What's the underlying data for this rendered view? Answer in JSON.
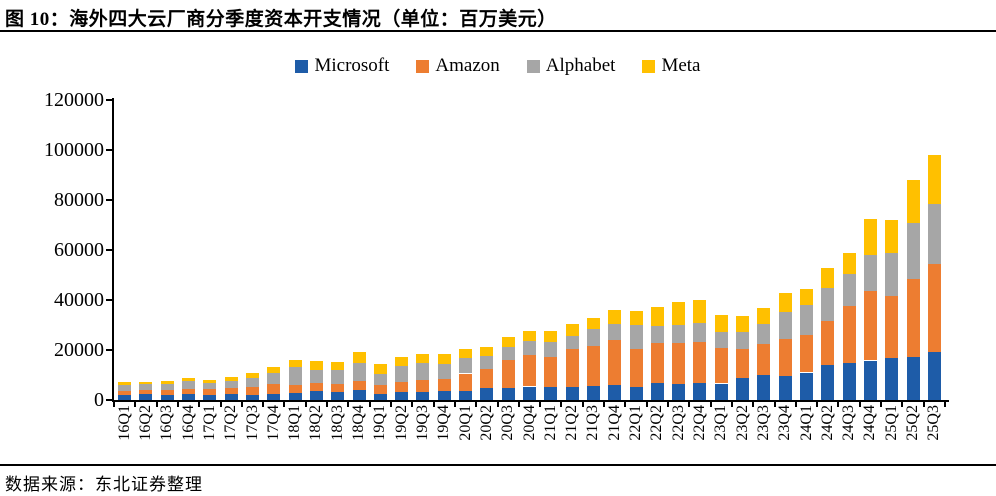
{
  "figure": {
    "title": "图 10：海外四大云厂商分季度资本开支情况（单位：百万美元）",
    "source": "数据来源：东北证券整理"
  },
  "chart_data": {
    "type": "bar",
    "stacked": true,
    "title": "海外四大云厂商分季度资本开支情况",
    "unit_label": "百万美元",
    "grid": false,
    "legend_position": "top",
    "xlabel": "",
    "ylabel": "",
    "ylim": [
      0,
      120000
    ],
    "yticks": [
      0,
      20000,
      40000,
      60000,
      80000,
      100000,
      120000
    ],
    "categories": [
      "16Q1",
      "16Q2",
      "16Q3",
      "16Q4",
      "17Q1",
      "17Q2",
      "17Q3",
      "17Q4",
      "18Q1",
      "18Q2",
      "18Q3",
      "18Q4",
      "19Q1",
      "19Q2",
      "19Q3",
      "19Q4",
      "20Q1",
      "20Q2",
      "20Q3",
      "20Q4",
      "21Q1",
      "21Q2",
      "21Q3",
      "21Q4",
      "22Q1",
      "22Q2",
      "22Q3",
      "22Q4",
      "23Q1",
      "23Q2",
      "23Q3",
      "23Q4",
      "24Q1",
      "24Q2",
      "24Q3",
      "24Q4",
      "25Q1",
      "25Q2",
      "25Q3"
    ],
    "series": [
      {
        "name": "Microsoft",
        "color": "#1E5CA8",
        "values": [
          2100,
          2400,
          2200,
          2500,
          1900,
          2300,
          2200,
          2600,
          2900,
          3500,
          3200,
          3900,
          2600,
          3400,
          3400,
          3500,
          3800,
          4700,
          4900,
          5400,
          5100,
          5300,
          5800,
          5900,
          5300,
          6900,
          6300,
          6800,
          6600,
          8900,
          9900,
          9700,
          11000,
          13900,
          14900,
          15800,
          16700,
          17100,
          19400
        ]
      },
      {
        "name": "Amazon",
        "color": "#ED7D31",
        "values": [
          1500,
          1700,
          1700,
          1800,
          2400,
          2500,
          3100,
          3900,
          3100,
          3200,
          3350,
          3800,
          3300,
          3900,
          4700,
          4960,
          6800,
          7600,
          11060,
          12640,
          12080,
          14950,
          15750,
          18280,
          14950,
          15720,
          16380,
          16590,
          14210,
          11460,
          12480,
          14590,
          14930,
          17620,
          22620,
          27830,
          25020,
          31440,
          35100
        ]
      },
      {
        "name": "Alphabet",
        "color": "#A6A6A6",
        "values": [
          2360,
          2120,
          2550,
          3170,
          2510,
          2790,
          3570,
          4320,
          7280,
          5480,
          5280,
          7100,
          4640,
          6130,
          6730,
          6060,
          6010,
          5390,
          5410,
          5480,
          5940,
          5500,
          6820,
          6380,
          9790,
          6830,
          7280,
          7600,
          6290,
          6890,
          8060,
          11020,
          12010,
          13190,
          13060,
          14280,
          17200,
          22450,
          23950
        ]
      },
      {
        "name": "Meta",
        "color": "#FFC000",
        "values": [
          1130,
          1000,
          1100,
          1270,
          1270,
          1440,
          1760,
          2260,
          2810,
          3460,
          3340,
          4310,
          3840,
          3630,
          3550,
          4080,
          3810,
          3410,
          3860,
          4040,
          4300,
          4490,
          4260,
          5520,
          5390,
          7570,
          9360,
          9120,
          6820,
          6220,
          6540,
          7680,
          6400,
          8170,
          8260,
          14430,
          12940,
          17010,
          19370
        ]
      }
    ]
  }
}
